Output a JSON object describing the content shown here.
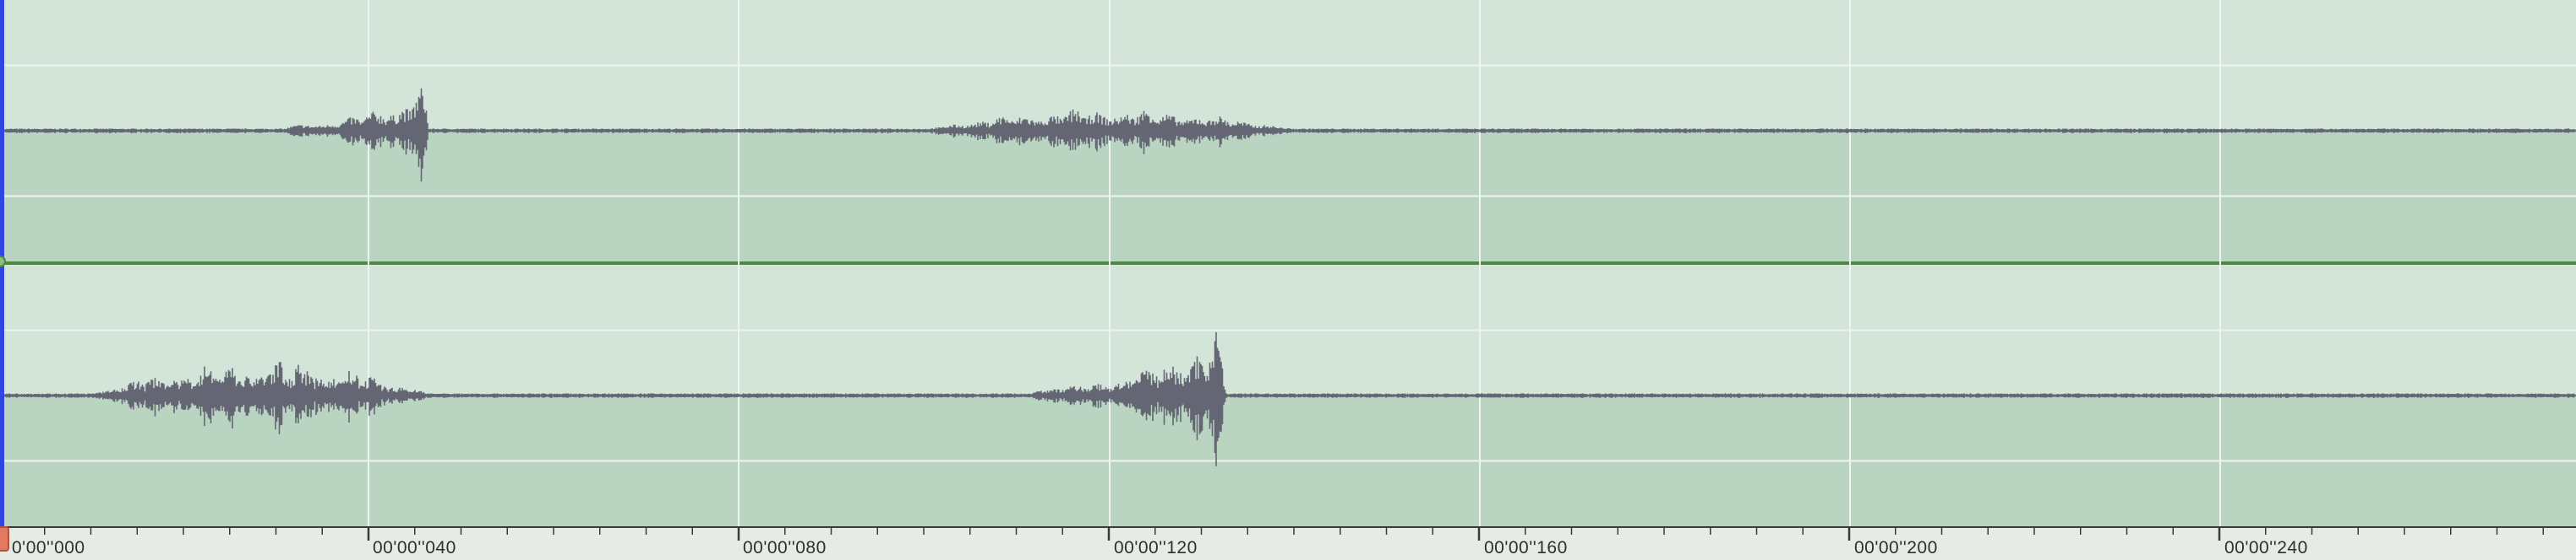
{
  "timeline": {
    "labels": [
      "0'00''000",
      "00'00''040",
      "00'00''080",
      "00'00''120",
      "00'00''160",
      "00'00''200",
      "00'00''240"
    ]
  },
  "channels": [
    {
      "name": "",
      "bursts": [
        {
          "start": 0.11,
          "end": 0.165,
          "peak": 0.9,
          "shape": "crescendo"
        },
        {
          "start": 0.36,
          "end": 0.5,
          "peak": 0.38,
          "shape": "swell"
        }
      ]
    },
    {
      "name": "",
      "bursts": [
        {
          "start": 0.035,
          "end": 0.165,
          "peak": 0.62,
          "shape": "swell"
        },
        {
          "start": 0.4,
          "end": 0.475,
          "peak": 1.35,
          "shape": "crescendo"
        }
      ]
    }
  ],
  "colors": {
    "background_upper": "#d3e5d8",
    "background_lower": "#b9d5c1",
    "waveform": "#646674",
    "grid": "#eef5ef",
    "divider": "#4f8a45",
    "ruler": "#e6ebe6",
    "playhead": "#3046e0"
  },
  "icons": {
    "playhead": "playhead-marker-icon",
    "channel_handle": "channel-divider-handle-icon"
  }
}
